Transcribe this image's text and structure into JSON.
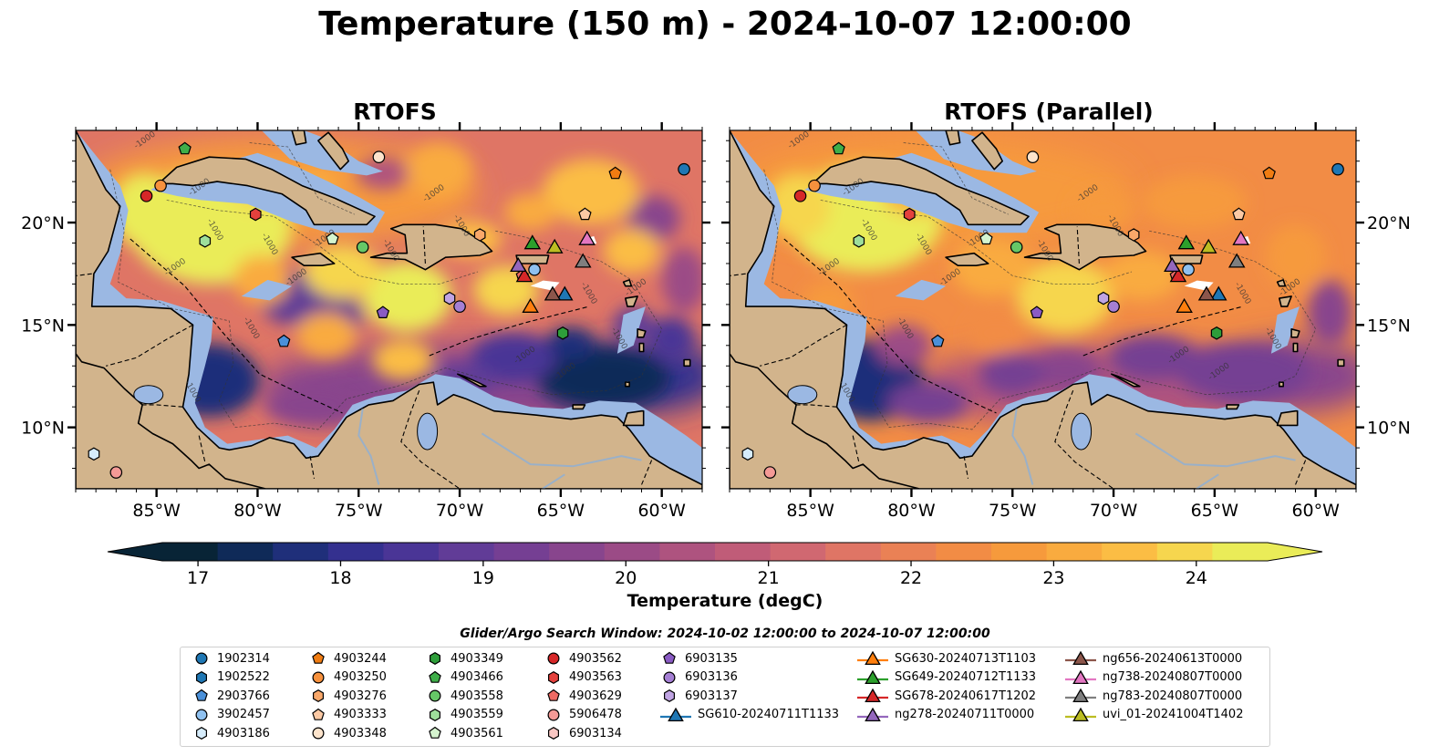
{
  "title": "Temperature (150 m) - 2024-10-07 12:00:00",
  "panels": [
    {
      "title": "RTOFS"
    },
    {
      "title": "RTOFS (Parallel)"
    }
  ],
  "map": {
    "lon_range": [
      -89,
      -58
    ],
    "lat_range": [
      7,
      24.5
    ],
    "lon_ticks": [
      "85°W",
      "80°W",
      "75°W",
      "70°W",
      "65°W",
      "60°W"
    ],
    "lat_ticks": [
      "20°N",
      "15°N",
      "10°N"
    ],
    "contour_label": "-1000",
    "land_color": "#d2b48c",
    "shelf_color": "#9bb8e3",
    "deep_pacific_color": "#06202f"
  },
  "colorbar": {
    "label": "Temperature (degC)",
    "ticks": [
      "17",
      "18",
      "19",
      "20",
      "21",
      "22",
      "23",
      "24"
    ],
    "range": [
      16.75,
      24.5
    ],
    "colors": [
      "#082436",
      "#0f2a58",
      "#1f2f7a",
      "#34308f",
      "#4a3596",
      "#613c97",
      "#753f93",
      "#88458d",
      "#9b4b86",
      "#ae537f",
      "#c05c78",
      "#d06871",
      "#df7565",
      "#ea8155",
      "#f28c45",
      "#f69a3c",
      "#f9ab3f",
      "#fbbd44",
      "#f6d64e",
      "#eaec58"
    ]
  },
  "legend": {
    "title": "Glider/Argo Search Window: 2024-10-02 12:00:00 to 2024-10-07 12:00:00",
    "columns": [
      [
        "1902314",
        "1902522",
        "2903766",
        "3902457",
        "4903186"
      ],
      [
        "4903244",
        "4903250",
        "4903276",
        "4903333",
        "4903348"
      ],
      [
        "4903349",
        "4903466",
        "4903558",
        "4903559",
        "4903561"
      ],
      [
        "4903562",
        "4903563",
        "4903629",
        "5906478",
        "6903134"
      ],
      [
        "6903135",
        "6903136",
        "6903137",
        "SG610-20240711T1133"
      ],
      [
        "SG630-20240713T1103",
        "SG649-20240712T1133",
        "SG678-20240617T1202",
        "ng278-20240711T0000"
      ],
      [
        "ng656-20240613T0000",
        "ng738-20240807T0000",
        "ng783-20240807T0000",
        "uvi_01-20241004T1402"
      ]
    ]
  },
  "chart_data": {
    "type": "heatmap",
    "variable": "Temperature (degC)",
    "depth": "150 m",
    "time": "2024-10-07 12:00:00",
    "colorbar_range": [
      17,
      24
    ],
    "markers": [
      {
        "id": "1902314",
        "shape": "circle",
        "color": "#1f77b4",
        "lon": -58.9,
        "lat": 22.6
      },
      {
        "id": "1902522",
        "shape": "hexagon",
        "color": "#1f77b4",
        "lon": null,
        "lat": null
      },
      {
        "id": "2903766",
        "shape": "pentagon",
        "color": "#4a90d9",
        "lon": -78.7,
        "lat": 14.2
      },
      {
        "id": "3902457",
        "shape": "circle",
        "color": "#8fc1f0",
        "lon": -66.3,
        "lat": 17.7
      },
      {
        "id": "4903186",
        "shape": "hexagon",
        "color": "#d6ecfb",
        "lon": -88.1,
        "lat": 8.7
      },
      {
        "id": "4903244",
        "shape": "pentagon",
        "color": "#f07c12",
        "lon": -62.3,
        "lat": 22.4
      },
      {
        "id": "4903250",
        "shape": "circle",
        "color": "#f7913d",
        "lon": -84.8,
        "lat": 21.8
      },
      {
        "id": "4903276",
        "shape": "hexagon",
        "color": "#f9a86a",
        "lon": -69.0,
        "lat": 19.4
      },
      {
        "id": "4903333",
        "shape": "pentagon",
        "color": "#fbc9a4",
        "lon": -63.8,
        "lat": 20.4
      },
      {
        "id": "4903348",
        "shape": "circle",
        "color": "#fde4cc",
        "lon": -74.0,
        "lat": 23.2
      },
      {
        "id": "4903349",
        "shape": "hexagon",
        "color": "#2e9e3a",
        "lon": -64.9,
        "lat": 14.6
      },
      {
        "id": "4903466",
        "shape": "pentagon",
        "color": "#3fae49",
        "lon": -83.6,
        "lat": 23.6
      },
      {
        "id": "4903558",
        "shape": "circle",
        "color": "#66c767",
        "lon": -74.8,
        "lat": 18.8
      },
      {
        "id": "4903559",
        "shape": "hexagon",
        "color": "#9edf9b",
        "lon": -82.6,
        "lat": 19.1
      },
      {
        "id": "4903561",
        "shape": "pentagon",
        "color": "#d5f4cf",
        "lon": -76.3,
        "lat": 19.2
      },
      {
        "id": "4903562",
        "shape": "circle",
        "color": "#d62728",
        "lon": -85.5,
        "lat": 21.3
      },
      {
        "id": "4903563",
        "shape": "hexagon",
        "color": "#e4413d",
        "lon": -80.1,
        "lat": 20.4
      },
      {
        "id": "4903629",
        "shape": "pentagon",
        "color": "#ee6a64",
        "lon": -66.9,
        "lat": 17.4
      },
      {
        "id": "5906478",
        "shape": "circle",
        "color": "#f49a96",
        "lon": -87.0,
        "lat": 7.8
      },
      {
        "id": "6903134",
        "shape": "hexagon",
        "color": "#f9c7c3",
        "lon": null,
        "lat": null
      },
      {
        "id": "6903135",
        "shape": "pentagon",
        "color": "#8a5bc4",
        "lon": -73.8,
        "lat": 15.6
      },
      {
        "id": "6903136",
        "shape": "circle",
        "color": "#a57fd4",
        "lon": -70.0,
        "lat": 15.9
      },
      {
        "id": "6903137",
        "shape": "hexagon",
        "color": "#c0a4e3",
        "lon": -70.5,
        "lat": 16.3
      },
      {
        "id": "SG610-20240711T1133",
        "shape": "triangle",
        "color": "#1f77b4",
        "lon": -64.8,
        "lat": 16.5
      },
      {
        "id": "SG630-20240713T1103",
        "shape": "triangle",
        "color": "#ff7f0e",
        "lon": -66.5,
        "lat": 15.9
      },
      {
        "id": "SG649-20240712T1133",
        "shape": "triangle",
        "color": "#2ca02c",
        "lon": -66.4,
        "lat": 19.0
      },
      {
        "id": "SG678-20240617T1202",
        "shape": "triangle",
        "color": "#d62728",
        "lon": -66.8,
        "lat": 17.4
      },
      {
        "id": "ng278-20240711T0000",
        "shape": "triangle",
        "color": "#9467bd",
        "lon": -67.1,
        "lat": 17.9
      },
      {
        "id": "ng656-20240613T0000",
        "shape": "triangle",
        "color": "#8c564b",
        "lon": -65.4,
        "lat": 16.5
      },
      {
        "id": "ng738-20240807T0000",
        "shape": "triangle",
        "color": "#e377c2",
        "lon": -63.7,
        "lat": 19.2
      },
      {
        "id": "ng783-20240807T0000",
        "shape": "triangle",
        "color": "#7f7f7f",
        "lon": -63.9,
        "lat": 18.1
      },
      {
        "id": "uvi_01-20241004T1402",
        "shape": "triangle",
        "color": "#bcbd22",
        "lon": -65.3,
        "lat": 18.8
      }
    ]
  }
}
